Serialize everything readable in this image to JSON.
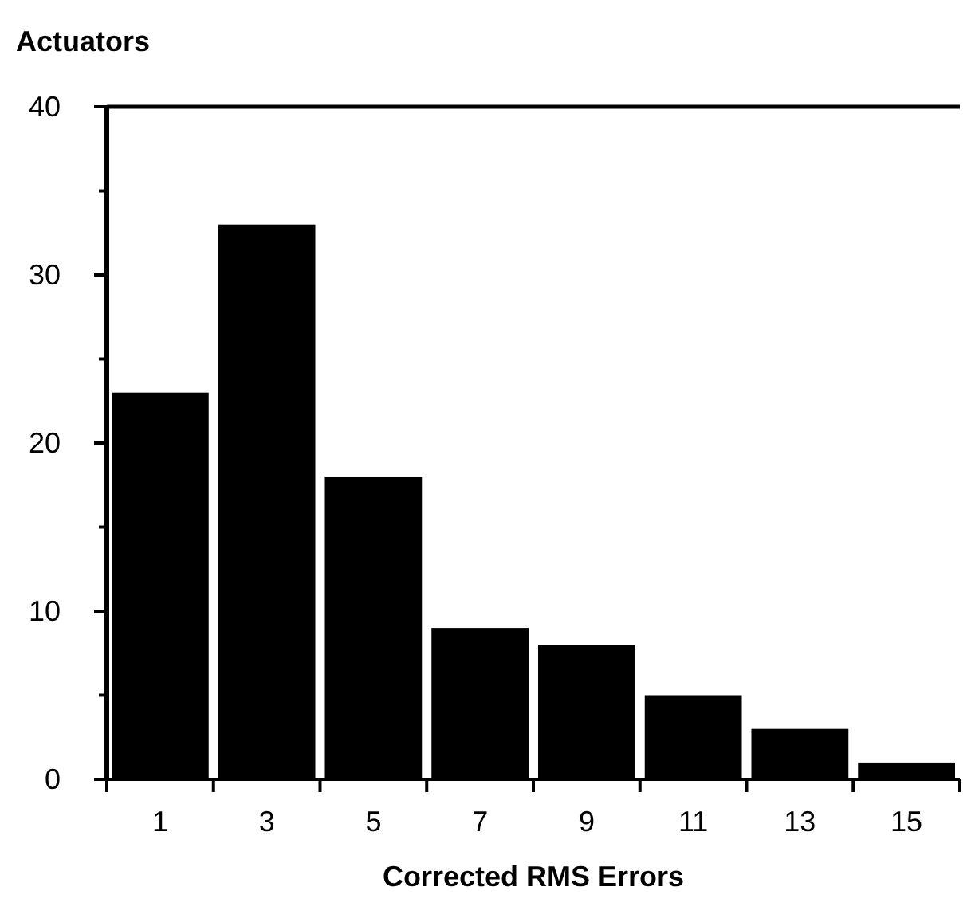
{
  "chart_data": {
    "type": "histogram",
    "ylabel": "Actuators",
    "xlabel": "Corrected RMS Errors",
    "bins": [
      0,
      2,
      4,
      6,
      8,
      10,
      12,
      14,
      16
    ],
    "values": [
      23,
      33,
      18,
      9,
      8,
      5,
      3,
      1
    ],
    "color": "#000000",
    "xlim": [
      0,
      16
    ],
    "xticks": [
      {
        "value": 0,
        "label": null
      },
      {
        "value": 1,
        "label": "1"
      },
      {
        "value": 2,
        "label": null
      },
      {
        "value": 3,
        "label": "3"
      },
      {
        "value": 4,
        "label": null
      },
      {
        "value": 5,
        "label": "5"
      },
      {
        "value": 6,
        "label": null
      },
      {
        "value": 7,
        "label": "7"
      },
      {
        "value": 8,
        "label": null
      },
      {
        "value": 9,
        "label": "9"
      },
      {
        "value": 10,
        "label": null
      },
      {
        "value": 11,
        "label": "11"
      },
      {
        "value": 12,
        "label": null
      },
      {
        "value": 13,
        "label": "13"
      },
      {
        "value": 14,
        "label": null
      },
      {
        "value": 15,
        "label": "15"
      },
      {
        "value": 16,
        "label": null
      }
    ],
    "ylim": [
      0,
      40
    ],
    "yticks": [
      0,
      {
        "value": 5,
        "label": null
      },
      10,
      {
        "value": 15,
        "label": null
      },
      20,
      {
        "value": 25,
        "label": null
      },
      30,
      {
        "value": 35,
        "label": null
      },
      40
    ],
    "grid": false
  }
}
